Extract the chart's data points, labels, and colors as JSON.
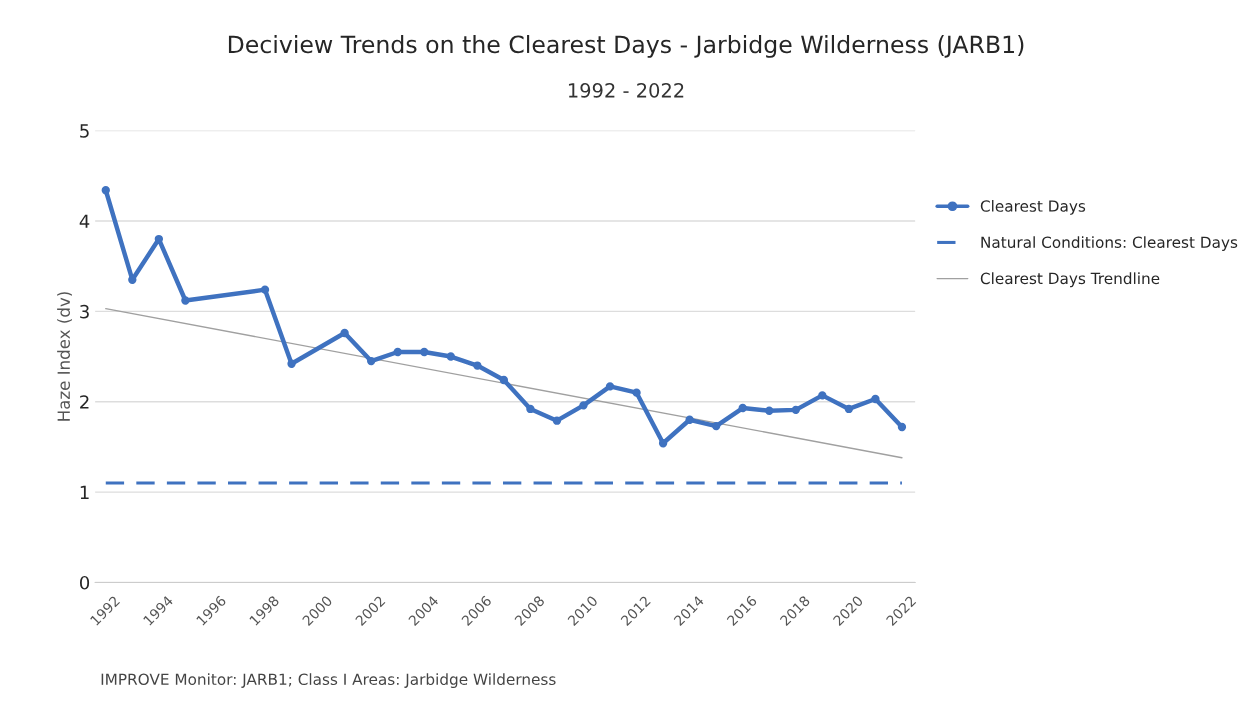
{
  "chart_data": {
    "type": "line",
    "title": "Deciview Trends on the Clearest Days - Jarbidge Wilderness (JARB1)",
    "subtitle": "1992 - 2022",
    "ylabel": "Haze Index (dv)",
    "series": [
      {
        "name": "Clearest Days",
        "color": "#3f72c0",
        "marker": "circle",
        "line_style": "solid",
        "x": [
          1992,
          1993,
          1994,
          1995,
          1998,
          1999,
          2001,
          2002,
          2003,
          2004,
          2005,
          2006,
          2007,
          2008,
          2009,
          2010,
          2011,
          2012,
          2013,
          2014,
          2015,
          2016,
          2017,
          2018,
          2019,
          2020,
          2021,
          2022
        ],
        "values": [
          4.34,
          3.35,
          3.8,
          3.12,
          3.24,
          2.42,
          2.76,
          2.45,
          2.55,
          2.55,
          2.5,
          2.4,
          2.24,
          1.92,
          1.79,
          1.96,
          2.17,
          2.1,
          1.54,
          1.8,
          1.73,
          1.93,
          1.9,
          1.91,
          2.07,
          1.92,
          2.03,
          1.72
        ]
      },
      {
        "name": "Natural Conditions: Clearest Days",
        "color": "#3f72c0",
        "marker": "none",
        "line_style": "dashed",
        "x": [
          1992,
          2022
        ],
        "values": [
          1.1,
          1.1
        ]
      },
      {
        "name": "Clearest Days Trendline",
        "color": "#a0a0a0",
        "marker": "none",
        "line_style": "solid",
        "x": [
          1992,
          2022
        ],
        "values": [
          3.03,
          1.38
        ]
      }
    ],
    "xlim": [
      1991.6,
      2022.5
    ],
    "xticks": [
      1992,
      1994,
      1996,
      1998,
      2000,
      2002,
      2004,
      2006,
      2008,
      2010,
      2012,
      2014,
      2016,
      2018,
      2020,
      2022
    ],
    "ylim": [
      0,
      5
    ],
    "yticks": [
      0,
      1,
      2,
      3,
      4,
      5
    ],
    "grid": "y",
    "legend": "right",
    "annotations": [
      "IMPROVE Monitor: JARB1; Class I Areas: Jarbidge Wilderness"
    ]
  }
}
